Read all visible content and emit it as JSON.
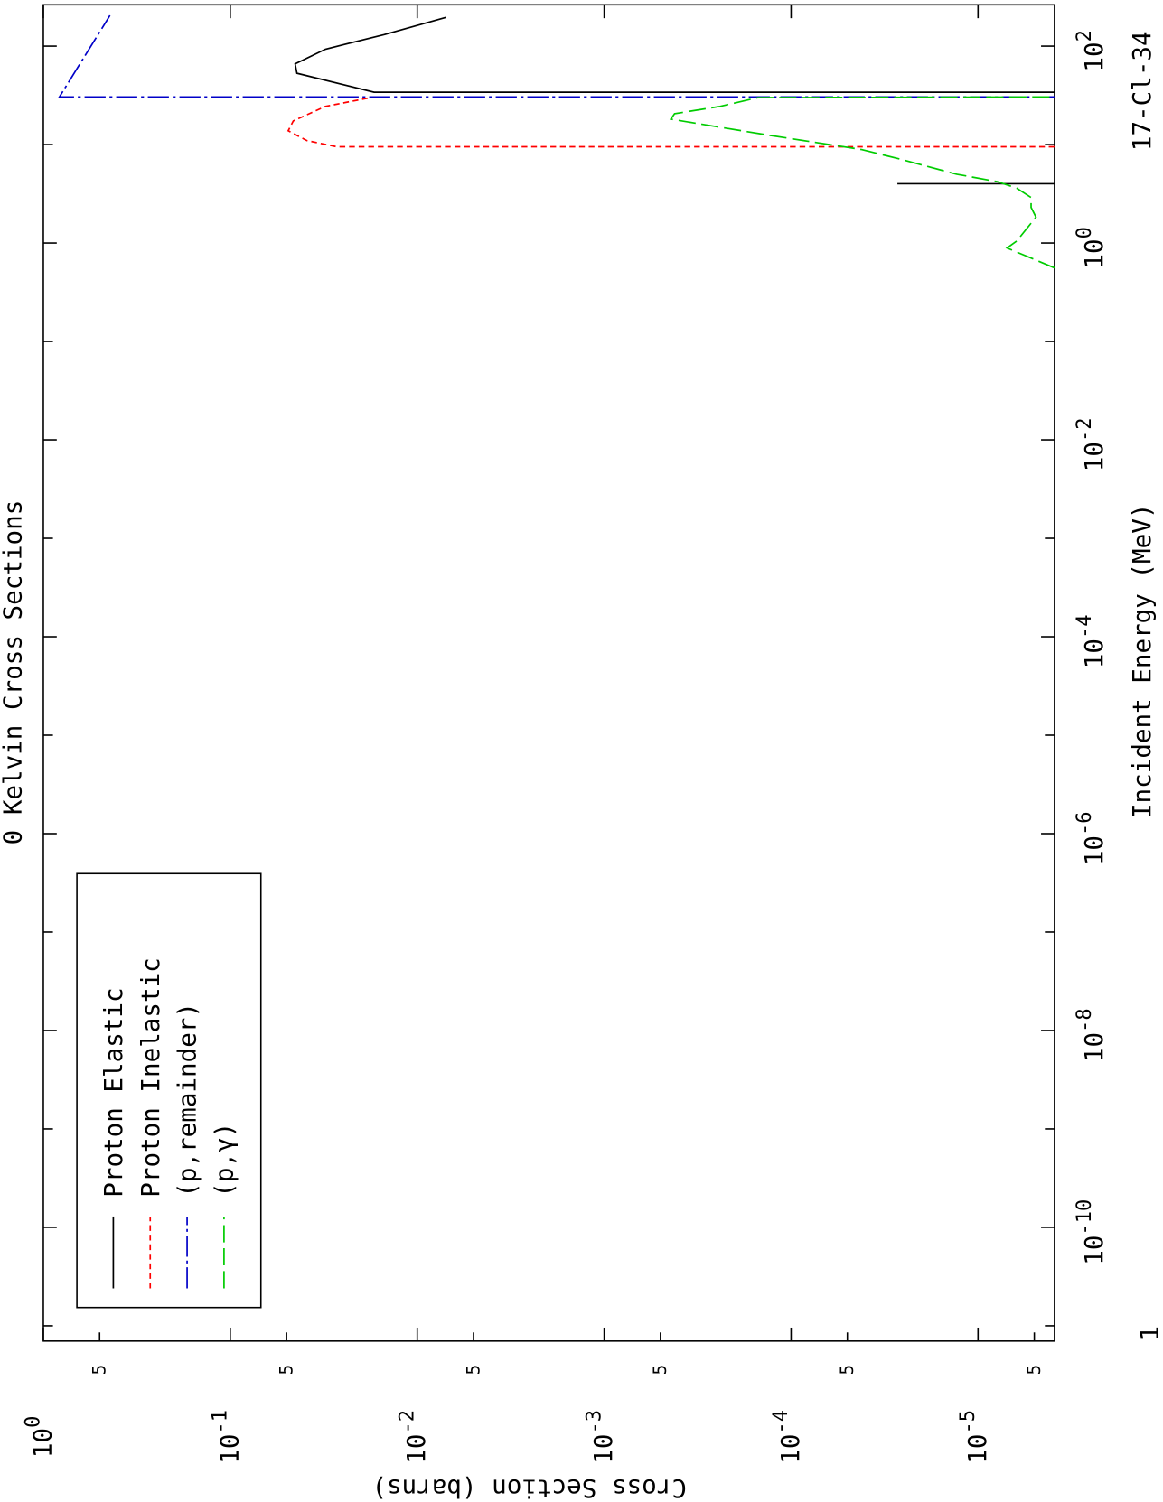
{
  "chart_data": {
    "type": "line",
    "title": "0 Kelvin Cross Sections",
    "xlabel": "Incident Energy (MeV)",
    "ylabel": "Cross Section (barns)",
    "annotation": "17-Cl-34",
    "x_corner_label": "1",
    "xscale": "log",
    "yscale": "log",
    "xlim": [
      7e-12,
      263
    ],
    "ylim": [
      1,
      3.9e-06
    ],
    "xticks": [
      {
        "value": 1e-10,
        "label": [
          "10",
          "-10"
        ]
      },
      {
        "value": 1e-08,
        "label": [
          "10",
          "-8"
        ]
      },
      {
        "value": 1e-06,
        "label": [
          "10",
          "-6"
        ]
      },
      {
        "value": 0.0001,
        "label": [
          "10",
          "-4"
        ]
      },
      {
        "value": 0.01,
        "label": [
          "10",
          "-2"
        ]
      },
      {
        "value": 1,
        "label": [
          "10",
          "0"
        ]
      },
      {
        "value": 100,
        "label": [
          "10",
          "2"
        ]
      }
    ],
    "xticks_minor": [
      1e-11,
      1e-09,
      1e-07,
      1e-05,
      0.001,
      0.1,
      10
    ],
    "yticks": [
      {
        "value": 1,
        "label": [
          "10",
          "0"
        ]
      },
      {
        "value": 0.1,
        "label": [
          "10",
          "-1"
        ]
      },
      {
        "value": 0.01,
        "label": [
          "10",
          "-2"
        ]
      },
      {
        "value": 0.001,
        "label": [
          "10",
          "-3"
        ]
      },
      {
        "value": 0.0001,
        "label": [
          "10",
          "-4"
        ]
      },
      {
        "value": 1e-05,
        "label": [
          "10",
          "-5"
        ]
      }
    ],
    "yticks_minor": [
      {
        "value": 0.5,
        "label": "5"
      },
      {
        "value": 0.05,
        "label": "5"
      },
      {
        "value": 0.005,
        "label": "5"
      },
      {
        "value": 0.0005,
        "label": "5"
      },
      {
        "value": 5e-05,
        "label": "5"
      },
      {
        "value": 5e-06,
        "label": "5"
      }
    ],
    "legend": "lower-left",
    "series": [
      {
        "name": "Proton Elastic",
        "color": "#000000",
        "dash": "none",
        "x": [
          4.0,
          4.0,
          null,
          34,
          34,
          53,
          66,
          93,
          131,
          196
        ],
        "values": [
          3.9e-06,
          2.7e-05,
          null,
          3.9e-06,
          0.017,
          0.044,
          0.045,
          0.031,
          0.015,
          0.007
        ]
      },
      {
        "name": "Proton Inelastic",
        "color": "#ff0000",
        "dash": "6,4",
        "x": [
          9.5,
          9.5,
          11,
          13.8,
          17.4,
          24.4,
          30.5
        ],
        "values": [
          3.9e-06,
          0.027,
          0.039,
          0.049,
          0.046,
          0.031,
          0.017
        ]
      },
      {
        "name": "(p,remainder)",
        "color": "#0000c8",
        "dash": "22,4,3,4",
        "x": [
          30.5,
          30.5,
          205
        ],
        "values": [
          3.9e-06,
          0.82,
          0.44
        ]
      },
      {
        "name": "(p,γ)",
        "color": "#00cc00",
        "dash": "18,6",
        "x": [
          0.56,
          0.89,
          1.05,
          1.83,
          2.3,
          2.9,
          3.6,
          4.2,
          5.0,
          7.1,
          8.9,
          12.4,
          18.1,
          20.6,
          24.4,
          30,
          30.5
        ],
        "values": [
          3.9e-06,
          7e-06,
          6.2e-06,
          4.9e-06,
          5.2e-06,
          5.2e-06,
          6.2e-06,
          7.9e-06,
          1.3e-05,
          2.6e-05,
          4.2e-05,
          0.00013,
          0.00044,
          0.00042,
          0.00024,
          0.00015,
          3.9e-06
        ]
      }
    ]
  }
}
